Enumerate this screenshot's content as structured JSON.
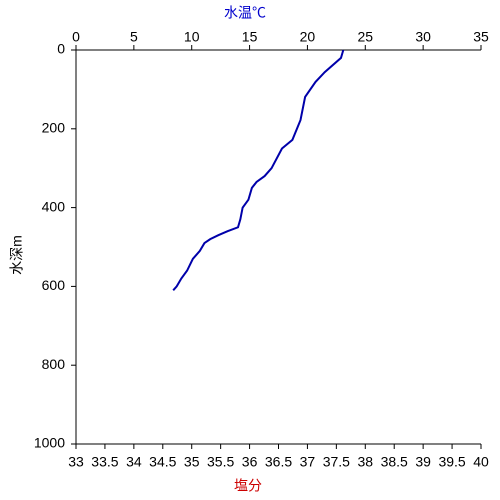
{
  "chart_data": {
    "type": "line",
    "xlabel": "水温℃",
    "x2label": "塩分",
    "ylabel": "水深m",
    "xlim": [
      0,
      35
    ],
    "xticks": [
      0,
      5,
      10,
      15,
      20,
      25,
      30,
      35
    ],
    "x2lim": [
      33,
      40
    ],
    "x2ticks": [
      33,
      33.5,
      34,
      34.5,
      35,
      35.5,
      36,
      36.5,
      37,
      37.5,
      38,
      38.5,
      39,
      39.5,
      40
    ],
    "ylim": [
      0,
      1000
    ],
    "yticks": [
      0,
      200,
      400,
      600,
      800,
      1000
    ],
    "y_inverted": true,
    "series": [
      {
        "color": "#0000aa",
        "x": [
          23.1,
          22.9,
          21.5,
          20.7,
          19.8,
          19.4,
          18.7,
          17.8,
          16.9,
          16.3,
          15.6,
          15.2,
          14.9,
          14.4,
          14.2,
          14.0,
          13.1,
          12.3,
          11.6,
          11.1,
          10.7,
          10.1,
          9.6,
          9.1,
          8.7,
          8.4
        ],
        "values": [
          0,
          20,
          56,
          81,
          119,
          178,
          228,
          250,
          300,
          320,
          335,
          350,
          380,
          400,
          430,
          450,
          460,
          470,
          480,
          490,
          510,
          530,
          560,
          580,
          600,
          610
        ]
      }
    ]
  }
}
